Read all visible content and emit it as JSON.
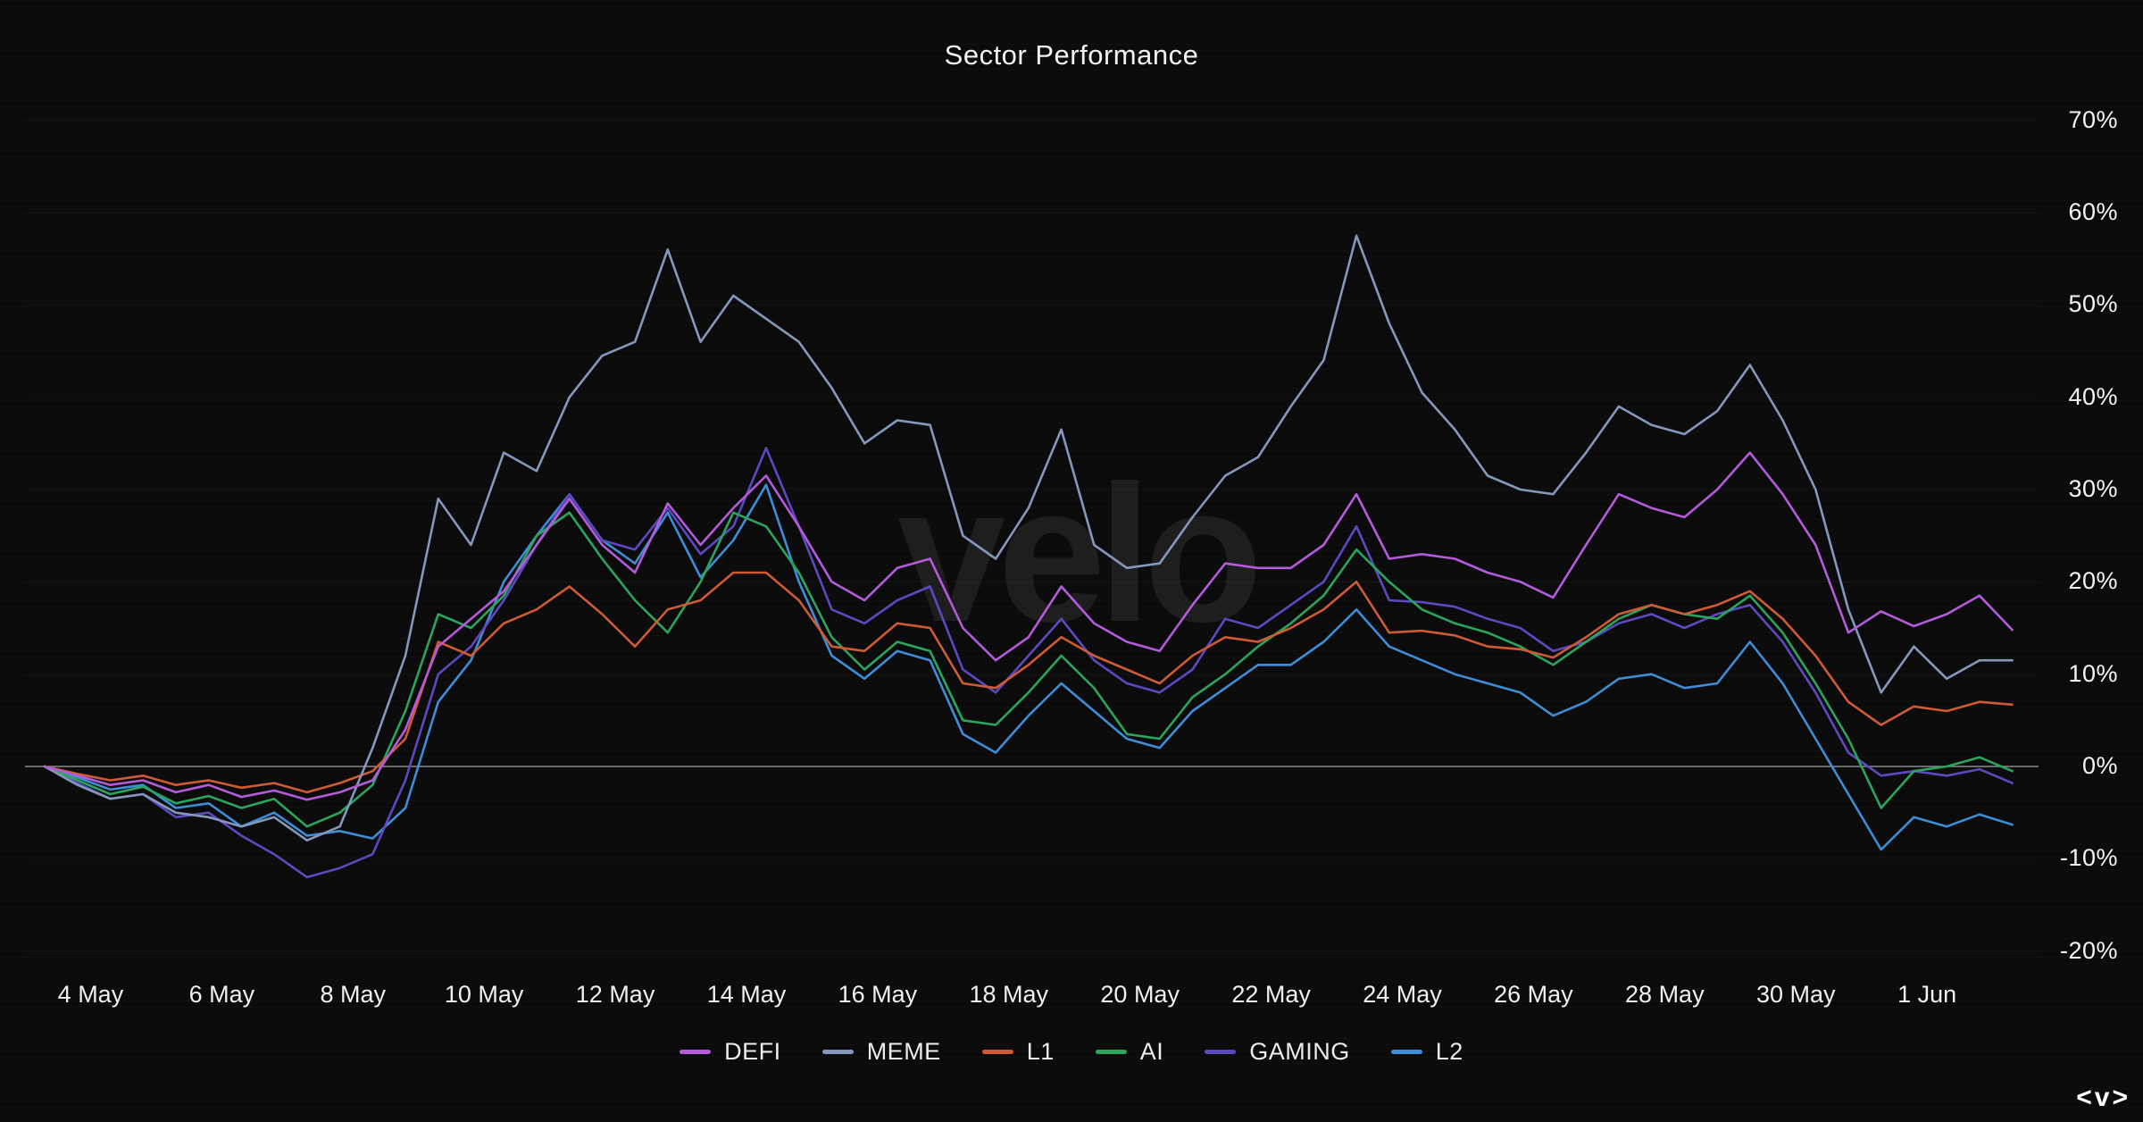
{
  "title": "Sector Performance",
  "watermark": "velo",
  "logo_mark": "<v>",
  "colors": {
    "background": "#0b0b0c",
    "text": "#f2f2f2",
    "zero_line": "#8a8a8a",
    "grid_line_alpha": "rgba(255,255,255,0.03)",
    "watermark": "#1e1e1e"
  },
  "chart_data": {
    "type": "line",
    "title": "Sector Performance",
    "xlabel": "",
    "ylabel": "",
    "x_unit": "days since 3 May (0.5-day sampling)",
    "x_start_day": 0.3,
    "x_step_days": 0.5,
    "x_domain": [
      0,
      30.7
    ],
    "ylim": [
      -25,
      74
    ],
    "grid": "zero-line only",
    "legend_position": "bottom-center",
    "y_ticks": [
      {
        "value": 70,
        "label": "70%"
      },
      {
        "value": 60,
        "label": "60%"
      },
      {
        "value": 50,
        "label": "50%"
      },
      {
        "value": 40,
        "label": "40%"
      },
      {
        "value": 30,
        "label": "30%"
      },
      {
        "value": 20,
        "label": "20%"
      },
      {
        "value": 10,
        "label": "10%"
      },
      {
        "value": 0,
        "label": "0%"
      },
      {
        "value": -10,
        "label": "-10%"
      },
      {
        "value": -20,
        "label": "-20%"
      }
    ],
    "x_ticks": [
      {
        "day": 1,
        "label": "4 May"
      },
      {
        "day": 3,
        "label": "6 May"
      },
      {
        "day": 5,
        "label": "8 May"
      },
      {
        "day": 7,
        "label": "10 May"
      },
      {
        "day": 9,
        "label": "12 May"
      },
      {
        "day": 11,
        "label": "14 May"
      },
      {
        "day": 13,
        "label": "16 May"
      },
      {
        "day": 15,
        "label": "18 May"
      },
      {
        "day": 17,
        "label": "20 May"
      },
      {
        "day": 19,
        "label": "22 May"
      },
      {
        "day": 21,
        "label": "24 May"
      },
      {
        "day": 23,
        "label": "26 May"
      },
      {
        "day": 25,
        "label": "28 May"
      },
      {
        "day": 27,
        "label": "30 May"
      },
      {
        "day": 29,
        "label": "1 Jun"
      }
    ],
    "series": [
      {
        "name": "DEFI",
        "color": "#b35bdb",
        "values": [
          0,
          -1,
          -2,
          -1.5,
          -2.8,
          -2,
          -3.3,
          -2.6,
          -3.6,
          -2.8,
          -1.5,
          4,
          13,
          16,
          19,
          24,
          29,
          24,
          21,
          28.5,
          24,
          28,
          31.5,
          26,
          20,
          18,
          21.5,
          22.5,
          15,
          11.5,
          14,
          19.5,
          15.5,
          13.5,
          12.5,
          17.5,
          22,
          21.5,
          21.5,
          24,
          29.5,
          22.5,
          23,
          22.5,
          21,
          20,
          18.3,
          24,
          29.5,
          28,
          27,
          30,
          34,
          29.5,
          24,
          14.5,
          16.8,
          15.2,
          16.5,
          18.5,
          14.8
        ]
      },
      {
        "name": "MEME",
        "color": "#8598bb",
        "values": [
          0,
          -2,
          -3.5,
          -3,
          -5,
          -5.5,
          -6.5,
          -5.5,
          -8,
          -6.5,
          2,
          12,
          29,
          24,
          34,
          32,
          40,
          44.5,
          46,
          56,
          46,
          51,
          48.5,
          46,
          41,
          35,
          37.5,
          37,
          25,
          22.5,
          28,
          36.5,
          24,
          21.5,
          22,
          27,
          31.5,
          33.5,
          39,
          44,
          57.5,
          48,
          40.5,
          36.5,
          31.5,
          30,
          29.5,
          34,
          39,
          37,
          36,
          38.5,
          43.5,
          37.5,
          30,
          17,
          8,
          13,
          9.5,
          11.5,
          11.5
        ]
      },
      {
        "name": "L1",
        "color": "#cf5b35",
        "values": [
          0,
          -0.8,
          -1.5,
          -1,
          -2,
          -1.5,
          -2.3,
          -1.8,
          -2.8,
          -1.8,
          -0.5,
          3,
          13.5,
          12,
          15.5,
          17,
          19.5,
          16.5,
          13,
          17,
          18,
          21,
          21,
          18,
          13,
          12.5,
          15.5,
          15,
          9,
          8.5,
          11,
          14,
          12,
          10.5,
          9,
          12,
          14,
          13.5,
          15,
          17,
          20,
          14.5,
          14.7,
          14.2,
          13,
          12.7,
          11.8,
          14,
          16.5,
          17.5,
          16.5,
          17.5,
          19,
          16,
          12,
          7,
          4.5,
          6.5,
          6,
          7,
          6.7
        ]
      },
      {
        "name": "AI",
        "color": "#2ba55c",
        "values": [
          0,
          -1.5,
          -3,
          -2.2,
          -4,
          -3.2,
          -4.5,
          -3.5,
          -6.5,
          -5,
          -2,
          6,
          16.5,
          15,
          18.5,
          25,
          27.5,
          22.5,
          18,
          14.5,
          20,
          27.5,
          26,
          21,
          14,
          10.5,
          13.5,
          12.5,
          5,
          4.5,
          8,
          12,
          8.5,
          3.5,
          3,
          7.5,
          10,
          13,
          15.5,
          18.5,
          23.5,
          20,
          17,
          15.5,
          14.5,
          13,
          11,
          13.5,
          16,
          17.5,
          16.5,
          16,
          18.5,
          14.5,
          9,
          3,
          -4.5,
          -0.5,
          0,
          1,
          -0.5
        ]
      },
      {
        "name": "GAMING",
        "color": "#5c49c0",
        "values": [
          0,
          -1.8,
          -3.5,
          -3,
          -5.5,
          -5,
          -7.5,
          -9.5,
          -12,
          -11,
          -9.5,
          -1.5,
          10,
          13,
          18,
          24,
          29.5,
          24.5,
          23.5,
          28,
          23,
          26,
          34.5,
          26,
          17,
          15.5,
          18,
          19.5,
          10.5,
          8,
          12,
          16,
          11.5,
          9,
          8,
          10.5,
          16,
          15,
          17.5,
          20,
          26,
          18,
          17.8,
          17.3,
          16,
          15,
          12.5,
          13.5,
          15.5,
          16.5,
          15,
          16.5,
          17.5,
          13.5,
          8,
          1.5,
          -1,
          -0.5,
          -1,
          -0.3,
          -1.8
        ]
      },
      {
        "name": "L2",
        "color": "#3d8ed6",
        "values": [
          0,
          -1.2,
          -2.5,
          -2,
          -4.5,
          -4,
          -6.5,
          -5,
          -7.5,
          -7,
          -7.8,
          -4.5,
          7,
          11.5,
          20,
          25,
          29.5,
          24.5,
          22,
          27.5,
          20.5,
          24.5,
          30.5,
          20,
          12,
          9.5,
          12.5,
          11.5,
          3.5,
          1.5,
          5.5,
          9,
          6,
          3,
          2,
          6,
          8.5,
          11,
          11,
          13.5,
          17,
          13,
          11.5,
          10,
          9,
          8,
          5.5,
          7,
          9.5,
          10,
          8.5,
          9,
          13.5,
          9,
          3,
          -3,
          -9,
          -5.5,
          -6.5,
          -5.2,
          -6.3
        ]
      }
    ]
  }
}
